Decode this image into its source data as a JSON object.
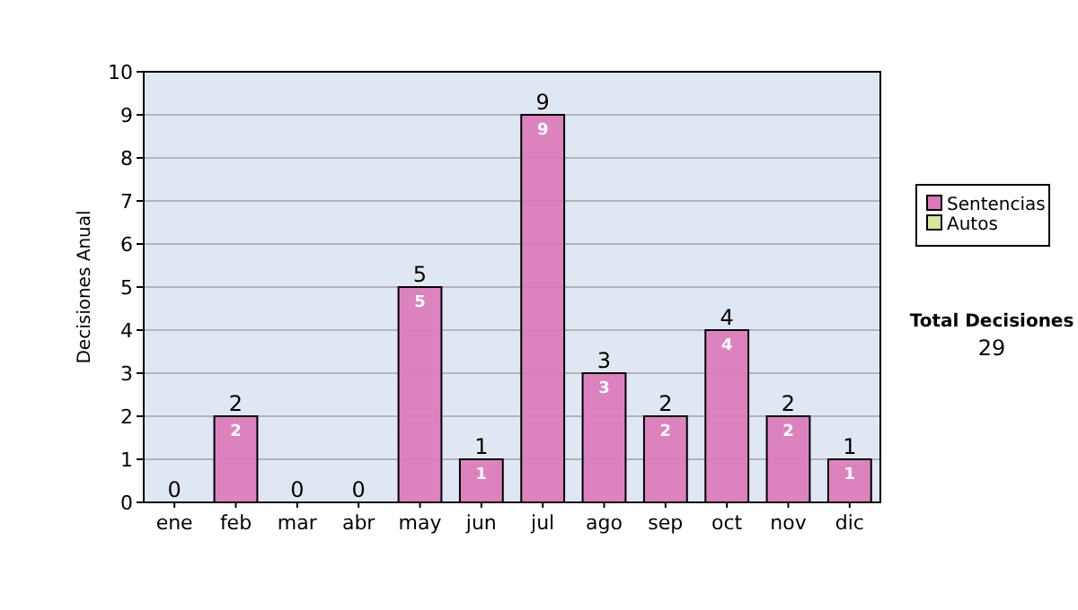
{
  "chart_data": {
    "type": "bar",
    "ylabel": "Decisiones Anual",
    "categories": [
      "ene",
      "feb",
      "mar",
      "abr",
      "may",
      "jun",
      "jul",
      "ago",
      "sep",
      "oct",
      "nov",
      "dic"
    ],
    "series": [
      {
        "name": "Sentencias",
        "color": "#dc78b9",
        "values": [
          0,
          2,
          0,
          0,
          5,
          1,
          9,
          3,
          2,
          4,
          2,
          1
        ],
        "value_labels": [
          null,
          "2",
          null,
          null,
          "5",
          "1",
          "9",
          "3",
          "2",
          "4",
          "2",
          "1"
        ]
      },
      {
        "name": "Autos",
        "color": "#d4e89a",
        "values": [
          0,
          0,
          0,
          0,
          0,
          0,
          0,
          0,
          0,
          0,
          0,
          0
        ]
      }
    ],
    "stacked": true,
    "totals": [
      "0",
      "2",
      "0",
      "0",
      "5",
      "1",
      "9",
      "3",
      "2",
      "4",
      "2",
      "1"
    ],
    "ylim": [
      0,
      10
    ],
    "yticks": [
      0,
      1,
      2,
      3,
      4,
      5,
      6,
      7,
      8,
      9,
      10
    ],
    "grid": "y",
    "legend": "right",
    "annotations": [
      "Total Decisiones",
      "29"
    ]
  }
}
